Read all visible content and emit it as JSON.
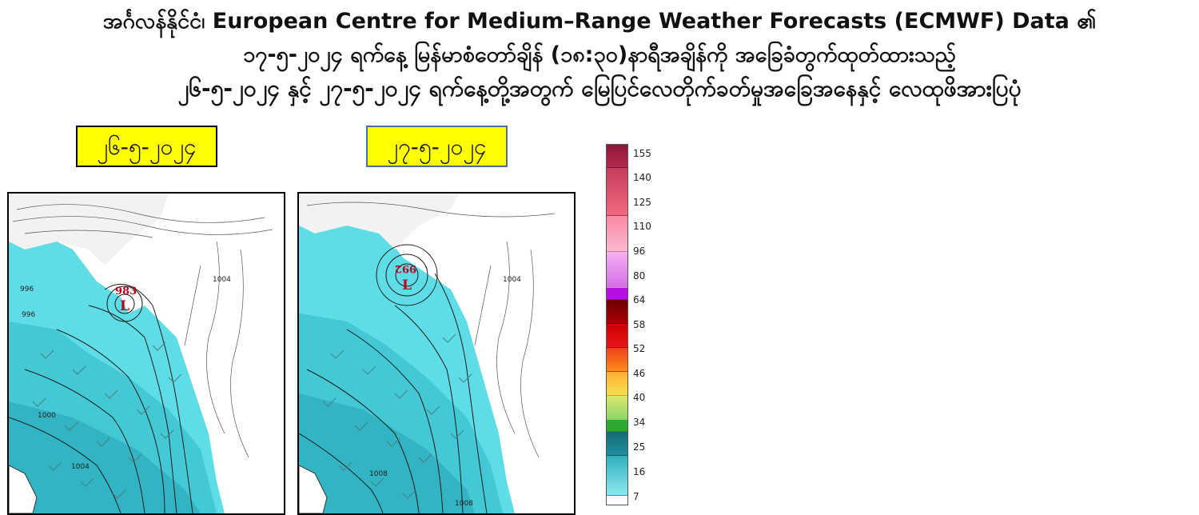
{
  "title": {
    "line1": "အင်္ဂလန်နိုင်ငံ၊ European Centre for Medium–Range Weather Forecasts (ECMWF) Data ၏",
    "line2": "၁၇-၅-၂၀၂၄ ရက်နေ့ မြန်မာစံတော်ချိန် (၁၈:၃၀)နာရီအချိန်ကို အခြေခံတွက်ထုတ်ထားသည့်",
    "line3": "၂၆-၅-၂၀၂၄ နှင့် ၂၇-၅-၂၀၂၄ ရက်နေ့တို့အတွက် မြေပြင်လေတိုက်ခတ်မှုအခြေအနေနှင့် လေထုဖိအားပြပုံ"
  },
  "panels": [
    {
      "date": "၂၆-၅-၂၀၂၄",
      "low_pressure_value": "983",
      "low_symbol": "L",
      "isobar_labels": [
        "996",
        "996",
        "1004",
        "1000",
        "1004"
      ]
    },
    {
      "date": "၂၇-၅-၂၀၂၄",
      "low_pressure_value": "992",
      "low_symbol": "L",
      "isobar_labels": [
        "1004",
        "1008",
        "1008"
      ]
    }
  ],
  "colorbar": {
    "labels": [
      "155",
      "140",
      "125",
      "110",
      "96",
      "80",
      "64",
      "58",
      "52",
      "46",
      "40",
      "34",
      "25",
      "16",
      "7"
    ],
    "colors": {
      "pink_top": "#9e1b3f",
      "magenta": "#b40fe0",
      "dark_red": "#6b0000",
      "red": "#e8141a",
      "orange": "#ff8c1a",
      "yellow": "#f5e050",
      "green": "#2fa82f",
      "teal_dark": "#1f7f8c",
      "cyan": "#5fd8e0"
    }
  },
  "map_colors": {
    "land_white": "#ffffff",
    "sea_cyan": "#5fdde6",
    "sea_deep": "#2fb2c0",
    "contour": "#1c1c1c",
    "low_marker": "#c0001a"
  }
}
